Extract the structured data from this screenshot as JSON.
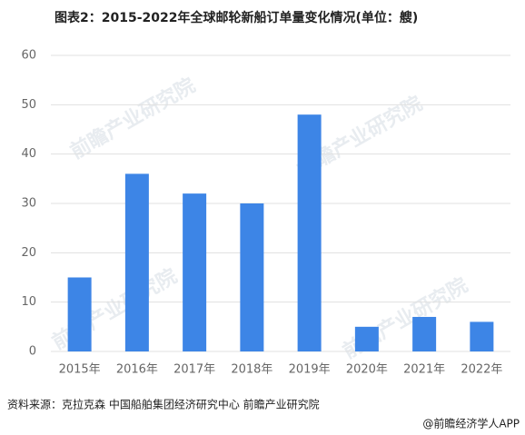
{
  "chart_data": {
    "type": "bar",
    "title": "图表2：2015-2022年全球邮轮新船订单量变化情况(单位：艘)",
    "categories": [
      "2015年",
      "2016年",
      "2017年",
      "2018年",
      "2019年",
      "2020年",
      "2021年",
      "2022年"
    ],
    "values": [
      15,
      36,
      32,
      30,
      48,
      5,
      7,
      6
    ],
    "color": "#3d85e6",
    "ylim": [
      0,
      60
    ],
    "yticks": [
      0,
      10,
      20,
      30,
      40,
      50,
      60
    ],
    "grid": true,
    "source": "资料来源：克拉克森 中国船舶集团经济研究中心 前瞻产业研究院",
    "credit": "@前瞻经济学人APP",
    "watermark": "前瞻产业研究院"
  }
}
